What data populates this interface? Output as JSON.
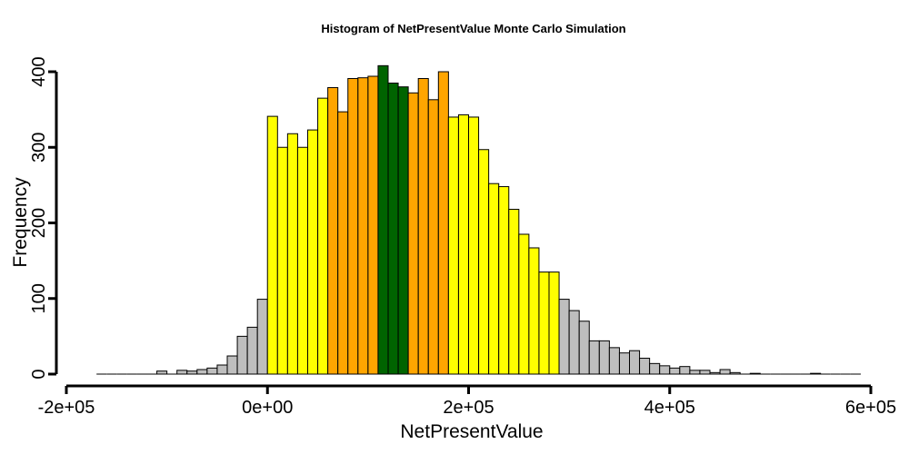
{
  "chart_data": {
    "type": "bar",
    "title": "Histogram of  NetPresentValue  Monte Carlo Simulation",
    "xlabel": "NetPresentValue",
    "ylabel": "Frequency",
    "xlim": [
      -200000,
      600000
    ],
    "ylim": [
      0,
      400
    ],
    "x_ticks": [
      -200000,
      0,
      200000,
      400000,
      600000
    ],
    "x_tick_labels": [
      "-2e+05",
      "0e+00",
      "2e+05",
      "4e+05",
      "6e+05"
    ],
    "y_ticks": [
      0,
      100,
      200,
      300,
      400
    ],
    "y_tick_labels": [
      "0",
      "100",
      "200",
      "300",
      "400"
    ],
    "bin_start": -170000,
    "bin_width": 10000,
    "grid": false,
    "colors": {
      "gray": "#bebebe",
      "yellow": "#ffff00",
      "orange": "#ffa500",
      "green": "#006400",
      "outline": "#000000"
    },
    "bins": [
      {
        "count": 0,
        "color": "gray"
      },
      {
        "count": 0,
        "color": "gray"
      },
      {
        "count": 0,
        "color": "gray"
      },
      {
        "count": 0,
        "color": "gray"
      },
      {
        "count": 0,
        "color": "gray"
      },
      {
        "count": 0,
        "color": "gray"
      },
      {
        "count": 4,
        "color": "gray"
      },
      {
        "count": 0,
        "color": "gray"
      },
      {
        "count": 5,
        "color": "gray"
      },
      {
        "count": 4,
        "color": "gray"
      },
      {
        "count": 6,
        "color": "gray"
      },
      {
        "count": 8,
        "color": "gray"
      },
      {
        "count": 12,
        "color": "gray"
      },
      {
        "count": 24,
        "color": "gray"
      },
      {
        "count": 50,
        "color": "gray"
      },
      {
        "count": 62,
        "color": "gray"
      },
      {
        "count": 99,
        "color": "gray"
      },
      {
        "count": 341,
        "color": "yellow"
      },
      {
        "count": 300,
        "color": "yellow"
      },
      {
        "count": 318,
        "color": "yellow"
      },
      {
        "count": 300,
        "color": "yellow"
      },
      {
        "count": 323,
        "color": "yellow"
      },
      {
        "count": 365,
        "color": "yellow"
      },
      {
        "count": 379,
        "color": "orange"
      },
      {
        "count": 347,
        "color": "orange"
      },
      {
        "count": 391,
        "color": "orange"
      },
      {
        "count": 392,
        "color": "orange"
      },
      {
        "count": 394,
        "color": "orange"
      },
      {
        "count": 408,
        "color": "green"
      },
      {
        "count": 385,
        "color": "green"
      },
      {
        "count": 380,
        "color": "green"
      },
      {
        "count": 372,
        "color": "orange"
      },
      {
        "count": 391,
        "color": "orange"
      },
      {
        "count": 363,
        "color": "orange"
      },
      {
        "count": 400,
        "color": "orange"
      },
      {
        "count": 340,
        "color": "yellow"
      },
      {
        "count": 343,
        "color": "yellow"
      },
      {
        "count": 340,
        "color": "yellow"
      },
      {
        "count": 297,
        "color": "yellow"
      },
      {
        "count": 252,
        "color": "yellow"
      },
      {
        "count": 248,
        "color": "yellow"
      },
      {
        "count": 218,
        "color": "yellow"
      },
      {
        "count": 185,
        "color": "yellow"
      },
      {
        "count": 167,
        "color": "yellow"
      },
      {
        "count": 135,
        "color": "yellow"
      },
      {
        "count": 135,
        "color": "yellow"
      },
      {
        "count": 99,
        "color": "gray"
      },
      {
        "count": 84,
        "color": "gray"
      },
      {
        "count": 70,
        "color": "gray"
      },
      {
        "count": 44,
        "color": "gray"
      },
      {
        "count": 44,
        "color": "gray"
      },
      {
        "count": 35,
        "color": "gray"
      },
      {
        "count": 28,
        "color": "gray"
      },
      {
        "count": 31,
        "color": "gray"
      },
      {
        "count": 21,
        "color": "gray"
      },
      {
        "count": 14,
        "color": "gray"
      },
      {
        "count": 11,
        "color": "gray"
      },
      {
        "count": 8,
        "color": "gray"
      },
      {
        "count": 10,
        "color": "gray"
      },
      {
        "count": 5,
        "color": "gray"
      },
      {
        "count": 5,
        "color": "gray"
      },
      {
        "count": 2,
        "color": "gray"
      },
      {
        "count": 6,
        "color": "gray"
      },
      {
        "count": 2,
        "color": "gray"
      },
      {
        "count": 0,
        "color": "gray"
      },
      {
        "count": 1,
        "color": "gray"
      },
      {
        "count": 0,
        "color": "gray"
      },
      {
        "count": 0,
        "color": "gray"
      },
      {
        "count": 0,
        "color": "gray"
      },
      {
        "count": 0,
        "color": "gray"
      },
      {
        "count": 0,
        "color": "gray"
      },
      {
        "count": 1,
        "color": "gray"
      },
      {
        "count": 0,
        "color": "gray"
      },
      {
        "count": 0,
        "color": "gray"
      },
      {
        "count": 0,
        "color": "gray"
      },
      {
        "count": 0,
        "color": "gray"
      }
    ]
  }
}
